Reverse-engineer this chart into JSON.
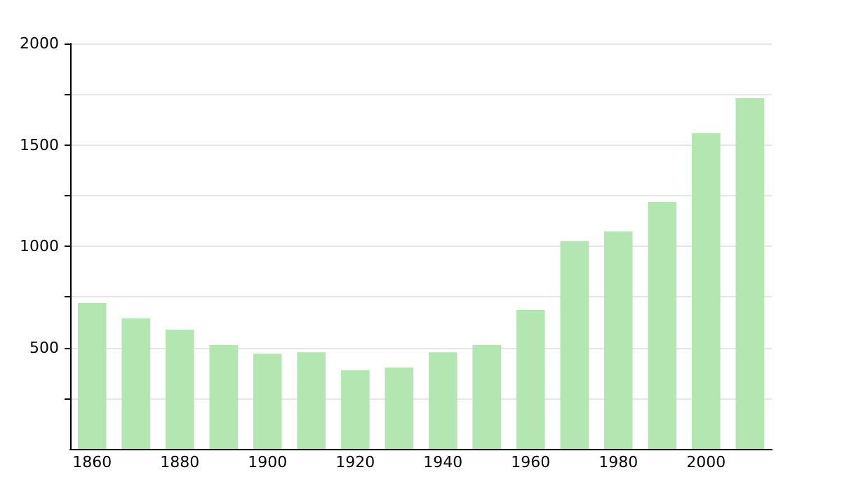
{
  "chart_data": {
    "type": "bar",
    "categories": [
      "1860",
      null,
      "1880",
      null,
      "1900",
      null,
      "1920",
      null,
      "1940",
      null,
      "1960",
      null,
      "1980",
      null,
      "2000",
      null
    ],
    "values": [
      720,
      644,
      588,
      512,
      470,
      477,
      388,
      401,
      477,
      512,
      685,
      1024,
      1073,
      1218,
      1557,
      1730
    ],
    "color": "#b3e6b0",
    "ylim": [
      0,
      2000
    ],
    "yticks": [
      {
        "value": 250,
        "label": null
      },
      500,
      {
        "value": 750,
        "label": null
      },
      1000,
      {
        "value": 1250,
        "label": null
      },
      1500,
      {
        "value": 1750,
        "label": null
      },
      2000
    ],
    "grid": "y"
  }
}
